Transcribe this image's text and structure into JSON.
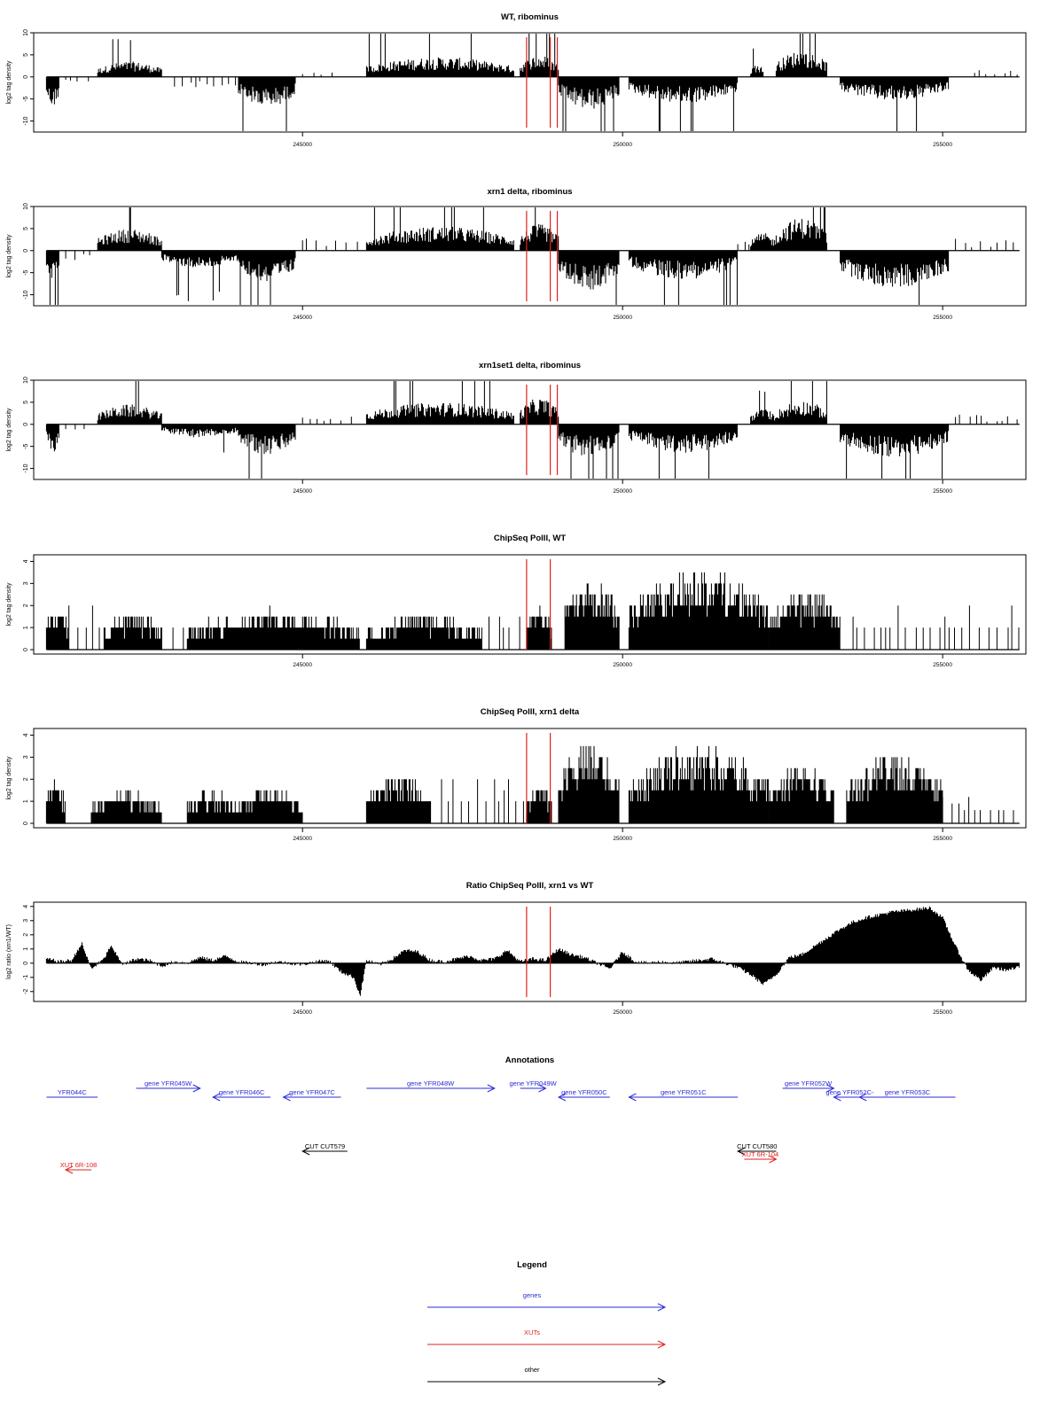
{
  "chart_data": [
    {
      "type": "bar",
      "title": "WT, ribominus",
      "ylabel": "log2 tag density",
      "xlim": [
        240800,
        256300
      ],
      "ylim": [
        -12.5,
        10
      ],
      "yticks": [
        10,
        5,
        0,
        -5,
        -10
      ],
      "xticks": [
        245000,
        250000,
        255000
      ],
      "baseline": 0,
      "red_lines": [
        248500,
        248870,
        248980
      ],
      "segments": [
        {
          "x0": 241000,
          "x1": 241200,
          "sign": -1,
          "amp": 7
        },
        {
          "x0": 241300,
          "x1": 241700,
          "sign": -1,
          "amp": 1.5,
          "sparse": true
        },
        {
          "x0": 241800,
          "x1": 242800,
          "sign": 1,
          "amp": 3.5
        },
        {
          "x0": 243000,
          "x1": 244000,
          "sign": -1,
          "amp": 2.5,
          "sparse": true
        },
        {
          "x0": 244000,
          "x1": 244900,
          "sign": -1,
          "amp": 7
        },
        {
          "x0": 245000,
          "x1": 245500,
          "sign": 1,
          "amp": 1.5,
          "sparse": true
        },
        {
          "x0": 246000,
          "x1": 248300,
          "sign": 1,
          "amp": 4.5
        },
        {
          "x0": 248400,
          "x1": 249000,
          "sign": 1,
          "amp": 5
        },
        {
          "x0": 249000,
          "x1": 249950,
          "sign": -1,
          "amp": 7.5
        },
        {
          "x0": 250100,
          "x1": 251800,
          "sign": -1,
          "amp": 6
        },
        {
          "x0": 252000,
          "x1": 252200,
          "sign": 1,
          "amp": 3
        },
        {
          "x0": 252400,
          "x1": 253200,
          "sign": 1,
          "amp": 6
        },
        {
          "x0": 253400,
          "x1": 255100,
          "sign": -1,
          "amp": 5.5
        },
        {
          "x0": 255500,
          "x1": 256200,
          "sign": 1,
          "amp": 1.5,
          "sparse": true
        }
      ]
    },
    {
      "type": "bar",
      "title": "xrn1 delta, ribominus",
      "ylabel": "log2 tag density",
      "xlim": [
        240800,
        256300
      ],
      "ylim": [
        -12.5,
        10
      ],
      "yticks": [
        10,
        5,
        0,
        -5,
        -10
      ],
      "xticks": [
        245000,
        250000,
        255000
      ],
      "baseline": 0,
      "red_lines": [
        248500,
        248870,
        248980
      ],
      "segments": [
        {
          "x0": 241000,
          "x1": 241200,
          "sign": -1,
          "amp": 6.5
        },
        {
          "x0": 241300,
          "x1": 241700,
          "sign": -1,
          "amp": 2,
          "sparse": true
        },
        {
          "x0": 241800,
          "x1": 242800,
          "sign": 1,
          "amp": 5
        },
        {
          "x0": 242800,
          "x1": 244000,
          "sign": -1,
          "amp": 4
        },
        {
          "x0": 244000,
          "x1": 244900,
          "sign": -1,
          "amp": 7.5
        },
        {
          "x0": 245000,
          "x1": 245900,
          "sign": 1,
          "amp": 2.5,
          "sparse": true
        },
        {
          "x0": 246000,
          "x1": 248300,
          "sign": 1,
          "amp": 5.5
        },
        {
          "x0": 248400,
          "x1": 249000,
          "sign": 1,
          "amp": 6
        },
        {
          "x0": 249000,
          "x1": 249950,
          "sign": -1,
          "amp": 9
        },
        {
          "x0": 250100,
          "x1": 251800,
          "sign": -1,
          "amp": 6.5
        },
        {
          "x0": 251800,
          "x1": 252000,
          "sign": 1,
          "amp": 2,
          "sparse": true
        },
        {
          "x0": 252000,
          "x1": 252400,
          "sign": 1,
          "amp": 4
        },
        {
          "x0": 252400,
          "x1": 253200,
          "sign": 1,
          "amp": 7.5
        },
        {
          "x0": 253400,
          "x1": 255100,
          "sign": -1,
          "amp": 8.5
        },
        {
          "x0": 255200,
          "x1": 256200,
          "sign": 1,
          "amp": 2.5,
          "sparse": true
        }
      ]
    },
    {
      "type": "bar",
      "title": "xrn1set1 delta, ribominus",
      "ylabel": "log2 tag density",
      "xlim": [
        240800,
        256300
      ],
      "ylim": [
        -12.5,
        10
      ],
      "yticks": [
        10,
        5,
        0,
        -5,
        -10
      ],
      "xticks": [
        245000,
        250000,
        255000
      ],
      "baseline": 0,
      "red_lines": [
        248500,
        248870,
        248980
      ],
      "segments": [
        {
          "x0": 241000,
          "x1": 241200,
          "sign": -1,
          "amp": 6.5
        },
        {
          "x0": 241300,
          "x1": 241700,
          "sign": -1,
          "amp": 2,
          "sparse": true
        },
        {
          "x0": 241800,
          "x1": 242800,
          "sign": 1,
          "amp": 4.5
        },
        {
          "x0": 242800,
          "x1": 244000,
          "sign": -1,
          "amp": 3
        },
        {
          "x0": 244000,
          "x1": 244900,
          "sign": -1,
          "amp": 7
        },
        {
          "x0": 245000,
          "x1": 245900,
          "sign": 1,
          "amp": 2.5,
          "sparse": true
        },
        {
          "x0": 246000,
          "x1": 248300,
          "sign": 1,
          "amp": 5
        },
        {
          "x0": 248400,
          "x1": 249000,
          "sign": 1,
          "amp": 6
        },
        {
          "x0": 249000,
          "x1": 249950,
          "sign": -1,
          "amp": 7.5
        },
        {
          "x0": 250100,
          "x1": 251800,
          "sign": -1,
          "amp": 6.5
        },
        {
          "x0": 252000,
          "x1": 252400,
          "sign": 1,
          "amp": 3.5
        },
        {
          "x0": 252400,
          "x1": 253200,
          "sign": 1,
          "amp": 5.5
        },
        {
          "x0": 253400,
          "x1": 255100,
          "sign": -1,
          "amp": 7.5
        },
        {
          "x0": 255200,
          "x1": 256200,
          "sign": 1,
          "amp": 2,
          "sparse": true
        }
      ]
    },
    {
      "type": "bar",
      "title": "ChipSeq PolII, WT",
      "ylabel": "log2 tag density",
      "xlim": [
        240800,
        256300
      ],
      "ylim": [
        -0.2,
        4.3
      ],
      "yticks": [
        4,
        3,
        2,
        1,
        0
      ],
      "xticks": [
        245000,
        250000,
        255000
      ],
      "baseline": 0,
      "red_lines": [
        248500,
        248870
      ],
      "segments": [
        {
          "x0": 241000,
          "x1": 241350,
          "sign": 1,
          "amp": 1.8
        },
        {
          "x0": 241350,
          "x1": 241900,
          "sign": 1,
          "amp": 1,
          "sparse": true
        },
        {
          "x0": 241900,
          "x1": 242800,
          "sign": 1,
          "amp": 1.5
        },
        {
          "x0": 242800,
          "x1": 243200,
          "sign": 1,
          "amp": 1,
          "sparse": true
        },
        {
          "x0": 243200,
          "x1": 245900,
          "sign": 1,
          "amp": 1.6
        },
        {
          "x0": 246000,
          "x1": 247800,
          "sign": 1,
          "amp": 1.4
        },
        {
          "x0": 247800,
          "x1": 248500,
          "sign": 1,
          "amp": 1,
          "sparse": true
        },
        {
          "x0": 248500,
          "x1": 248900,
          "sign": 1,
          "amp": 1.8
        },
        {
          "x0": 249100,
          "x1": 249950,
          "sign": 1,
          "amp": 3.2
        },
        {
          "x0": 250100,
          "x1": 252300,
          "sign": 1,
          "amp": 3.3
        },
        {
          "x0": 252300,
          "x1": 253400,
          "sign": 1,
          "amp": 2.5
        },
        {
          "x0": 253600,
          "x1": 255100,
          "sign": 1,
          "amp": 1,
          "sparse": true
        },
        {
          "x0": 255100,
          "x1": 256200,
          "sign": 1,
          "amp": 1,
          "sparse": true
        }
      ]
    },
    {
      "type": "bar",
      "title": "ChipSeq PolII, xrn1 delta",
      "ylabel": "log2 tag density",
      "xlim": [
        240800,
        256300
      ],
      "ylim": [
        -0.2,
        4.3
      ],
      "yticks": [
        4,
        3,
        2,
        1,
        0
      ],
      "xticks": [
        245000,
        250000,
        255000
      ],
      "baseline": 0,
      "red_lines": [
        248500,
        248870
      ],
      "segments": [
        {
          "x0": 241000,
          "x1": 241300,
          "sign": 1,
          "amp": 1.8
        },
        {
          "x0": 241700,
          "x1": 242800,
          "sign": 1,
          "amp": 1.3
        },
        {
          "x0": 243200,
          "x1": 244000,
          "sign": 1,
          "amp": 1.3
        },
        {
          "x0": 244000,
          "x1": 245000,
          "sign": 1,
          "amp": 1.5
        },
        {
          "x0": 246000,
          "x1": 247000,
          "sign": 1,
          "amp": 2.1
        },
        {
          "x0": 247000,
          "x1": 248500,
          "sign": 1,
          "amp": 1,
          "sparse": true
        },
        {
          "x0": 248500,
          "x1": 248900,
          "sign": 1,
          "amp": 1.8
        },
        {
          "x0": 249000,
          "x1": 249950,
          "sign": 1,
          "amp": 3.4
        },
        {
          "x0": 250100,
          "x1": 252300,
          "sign": 1,
          "amp": 3.2
        },
        {
          "x0": 252300,
          "x1": 253300,
          "sign": 1,
          "amp": 2.5
        },
        {
          "x0": 253500,
          "x1": 255000,
          "sign": 1,
          "amp": 2.9
        },
        {
          "x0": 255000,
          "x1": 256200,
          "sign": 1,
          "amp": 0.6,
          "sparse": true
        }
      ]
    },
    {
      "type": "area",
      "title": "Ratio ChipSeq PolII, xrn1 vs WT",
      "ylabel": "log2 ratio (xrn1/WT)",
      "xlim": [
        240800,
        256300
      ],
      "ylim": [
        -2.7,
        4.3
      ],
      "yticks": [
        4,
        3,
        2,
        1,
        0,
        -1,
        -2
      ],
      "xticks": [
        245000,
        250000,
        255000
      ],
      "baseline": 0,
      "red_lines": [
        248500,
        248870
      ],
      "x": [
        241000,
        241200,
        241400,
        241550,
        241700,
        241900,
        242000,
        242200,
        242400,
        242600,
        242800,
        243000,
        243200,
        243400,
        243600,
        243800,
        244000,
        244200,
        244400,
        244600,
        244800,
        245000,
        245200,
        245400,
        245600,
        245800,
        245900,
        246000,
        246200,
        246400,
        246600,
        246800,
        247000,
        247200,
        247400,
        247600,
        247800,
        248000,
        248200,
        248400,
        248600,
        248800,
        249000,
        249200,
        249400,
        249600,
        249800,
        250000,
        250200,
        250400,
        250600,
        250800,
        251000,
        251200,
        251400,
        251600,
        251800,
        252000,
        252200,
        252400,
        252600,
        252800,
        253000,
        253200,
        253400,
        253600,
        253800,
        254000,
        254200,
        254400,
        254600,
        254800,
        255000,
        255200,
        255400,
        255600,
        255800,
        256000,
        256200
      ],
      "y": [
        0.3,
        0.1,
        0.2,
        1.4,
        -0.4,
        0.3,
        1.2,
        -0.1,
        0.3,
        0.2,
        -0.2,
        0.1,
        0.0,
        0.4,
        0.2,
        0.5,
        0.1,
        0.0,
        -0.1,
        0.1,
        0.0,
        -0.1,
        0.1,
        0.2,
        -0.6,
        -1.0,
        -2.3,
        0.2,
        -0.1,
        0.3,
        0.9,
        0.8,
        0.2,
        0.1,
        0.3,
        0.5,
        0.2,
        0.3,
        0.9,
        0.1,
        0.3,
        0.2,
        1.0,
        0.6,
        0.4,
        0.0,
        -0.4,
        0.8,
        0.1,
        0.0,
        0.1,
        0.0,
        0.1,
        0.2,
        0.3,
        0.0,
        -0.3,
        -0.8,
        -1.5,
        -0.8,
        0.4,
        0.6,
        1.2,
        1.8,
        2.4,
        2.9,
        3.2,
        3.4,
        3.6,
        3.7,
        3.8,
        3.9,
        3.2,
        1.2,
        -0.5,
        -1.2,
        -0.3,
        -0.5,
        -0.3
      ]
    }
  ],
  "annotations": {
    "title": "Annotations",
    "xlim": [
      240800,
      256300
    ],
    "colors": {
      "genes": "#2b2bd8",
      "XUTs": "#e02020",
      "other": "#000000"
    },
    "items": [
      {
        "label": "YFR044C",
        "kind": "genes",
        "row": 0,
        "x0": 241000,
        "x1": 241800,
        "dir": "none"
      },
      {
        "label": "gene YFR045W",
        "kind": "genes",
        "row": -1,
        "x0": 242400,
        "x1": 243400,
        "dir": "right"
      },
      {
        "label": "gene YFR046C",
        "kind": "genes",
        "row": 0,
        "x0": 243600,
        "x1": 244500,
        "dir": "left"
      },
      {
        "label": "gene YFR047C",
        "kind": "genes",
        "row": 0,
        "x0": 244700,
        "x1": 245600,
        "dir": "left"
      },
      {
        "label": "gene YFR048W",
        "kind": "genes",
        "row": -1,
        "x0": 246000,
        "x1": 248000,
        "dir": "right"
      },
      {
        "label": "gene YFR049W",
        "kind": "genes",
        "row": -1,
        "x0": 248400,
        "x1": 248800,
        "dir": "right"
      },
      {
        "label": "gene YFR050C",
        "kind": "genes",
        "row": 0,
        "x0": 249000,
        "x1": 249800,
        "dir": "left"
      },
      {
        "label": "gene YFR051C",
        "kind": "genes",
        "row": 0,
        "x0": 250100,
        "x1": 251800,
        "dir": "left"
      },
      {
        "label": "gene YFR052W",
        "kind": "genes",
        "row": -1,
        "x0": 252500,
        "x1": 253300,
        "dir": "right"
      },
      {
        "label": "gene YFR052C-",
        "kind": "genes",
        "row": 0,
        "x0": 253300,
        "x1": 253800,
        "dir": "left"
      },
      {
        "label": "gene YFR053C",
        "kind": "genes",
        "row": 0,
        "x0": 253700,
        "x1": 255200,
        "dir": "left"
      },
      {
        "label": "CUT CUT579",
        "kind": "other",
        "row": 1,
        "x0": 245000,
        "x1": 245700,
        "dir": "left"
      },
      {
        "label": "CUT CUT580",
        "kind": "other",
        "row": 1,
        "x0": 251800,
        "x1": 252400,
        "dir": "left"
      },
      {
        "label": "XUT 6R-104",
        "kind": "XUTs",
        "row": 2,
        "x0": 251900,
        "x1": 252400,
        "dir": "right"
      },
      {
        "label": "XUT 6R-108",
        "kind": "XUTs",
        "row": 3,
        "x0": 241300,
        "x1": 241700,
        "dir": "left"
      }
    ]
  },
  "legend": {
    "title": "Legend",
    "entries": [
      {
        "label": "genes",
        "kind": "genes"
      },
      {
        "label": "XUTs",
        "kind": "XUTs"
      },
      {
        "label": "other",
        "kind": "other"
      }
    ]
  }
}
